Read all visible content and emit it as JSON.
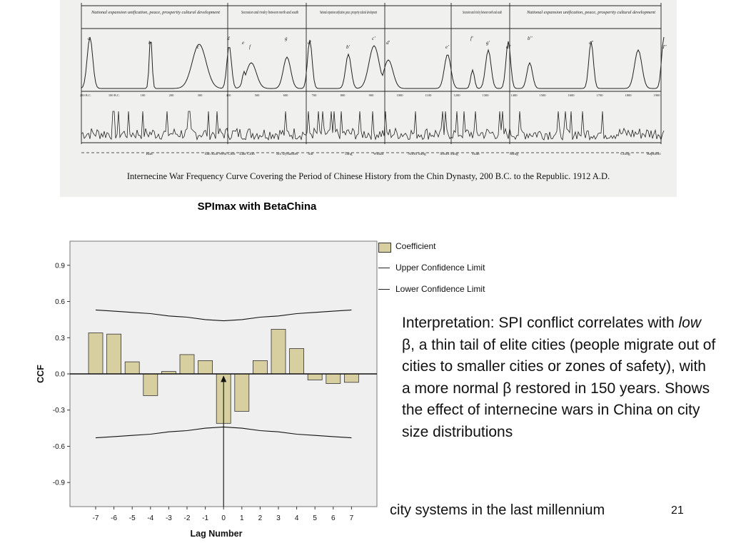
{
  "scan": {
    "period_headers": [
      "National expansion unification, peace, prosperity cultural development",
      "Secession and rivalry between north and south",
      "National expansion unification, peace, prosperity cultural development",
      "Secession and rivalry between north and south",
      "National expansion unification, peace, prosperity cultural development"
    ],
    "peak_letters": [
      "a",
      "b",
      "c",
      "d",
      "e",
      "f",
      "g",
      "a'",
      "b'",
      "c'",
      "d'",
      "e'",
      "f'",
      "g'",
      "a''",
      "b''",
      "c''",
      "d''"
    ],
    "date_ticks": [
      "200 B.C.",
      "100 B.C.",
      "100",
      "200",
      "300",
      "400",
      "500",
      "600",
      "700",
      "800",
      "900",
      "1000",
      "1100",
      "1200",
      "1300",
      "1400",
      "1500",
      "1600",
      "1700",
      "1800",
      "1900"
    ],
    "dynasties": [
      "Han",
      "San Kuo",
      "West Chin",
      "East Chin",
      "Six Dynasties",
      "Sui",
      "Tang",
      "Wudai",
      "North Sung",
      "South Sung",
      "Yuan",
      "Ming",
      "Ching",
      "Republic"
    ],
    "caption": "Internecine War Frequency Curve Covering the Period of Chinese History from the Chin Dynasty, 200 B.C. to the Republic. 1912 A.D."
  },
  "scan_title": "SPImax with BetaChina",
  "chart_data": {
    "type": "bar",
    "xlabel": "Lag Number",
    "ylabel": "CCF",
    "categories": [
      "-7",
      "-6",
      "-5",
      "-4",
      "-3",
      "-2",
      "-1",
      "0",
      "1",
      "2",
      "3",
      "4",
      "5",
      "6",
      "7"
    ],
    "x": [
      -7,
      -6,
      -5,
      -4,
      -3,
      -2,
      -1,
      0,
      1,
      2,
      3,
      4,
      5,
      6,
      7
    ],
    "series": [
      {
        "name": "Coefficient",
        "values": [
          0.34,
          0.33,
          0.1,
          -0.18,
          0.02,
          0.16,
          0.11,
          -0.41,
          -0.31,
          0.11,
          0.37,
          0.21,
          -0.05,
          -0.08,
          -0.07
        ]
      },
      {
        "name": "Upper Confidence Limit",
        "values": [
          0.53,
          0.52,
          0.51,
          0.5,
          0.48,
          0.47,
          0.45,
          0.44,
          0.45,
          0.47,
          0.48,
          0.5,
          0.51,
          0.52,
          0.53
        ]
      },
      {
        "name": "Lower Confidence Limit",
        "values": [
          -0.53,
          -0.52,
          -0.51,
          -0.5,
          -0.48,
          -0.47,
          -0.45,
          -0.44,
          -0.45,
          -0.47,
          -0.48,
          -0.5,
          -0.51,
          -0.52,
          -0.53
        ]
      }
    ],
    "yticks": [
      "0.9",
      "0.6",
      "0.3",
      "0.0",
      "-0.3",
      "-0.6",
      "-0.9"
    ],
    "ylim": [
      -1.1,
      1.1
    ],
    "grid": false,
    "legend_position": "right",
    "colors": {
      "bar": "#d8cfa0",
      "plot_bg": "#efefef"
    }
  },
  "legend": {
    "items": [
      {
        "label": "Coefficient"
      },
      {
        "label": "Upper Confidence Limit"
      },
      {
        "label": "Lower Confidence Limit"
      }
    ]
  },
  "interpretation": {
    "before": "Interpretation: SPI conflict correlates with ",
    "em": "low",
    "after": " β, a thin tail of elite cities (people migrate out of cities to smaller cities or zones of safety), with a more normal β restored in 150 years. Shows the effect of internecine wars in China on city size distributions"
  },
  "footer": "city systems in the last millennium",
  "page_number": "21"
}
